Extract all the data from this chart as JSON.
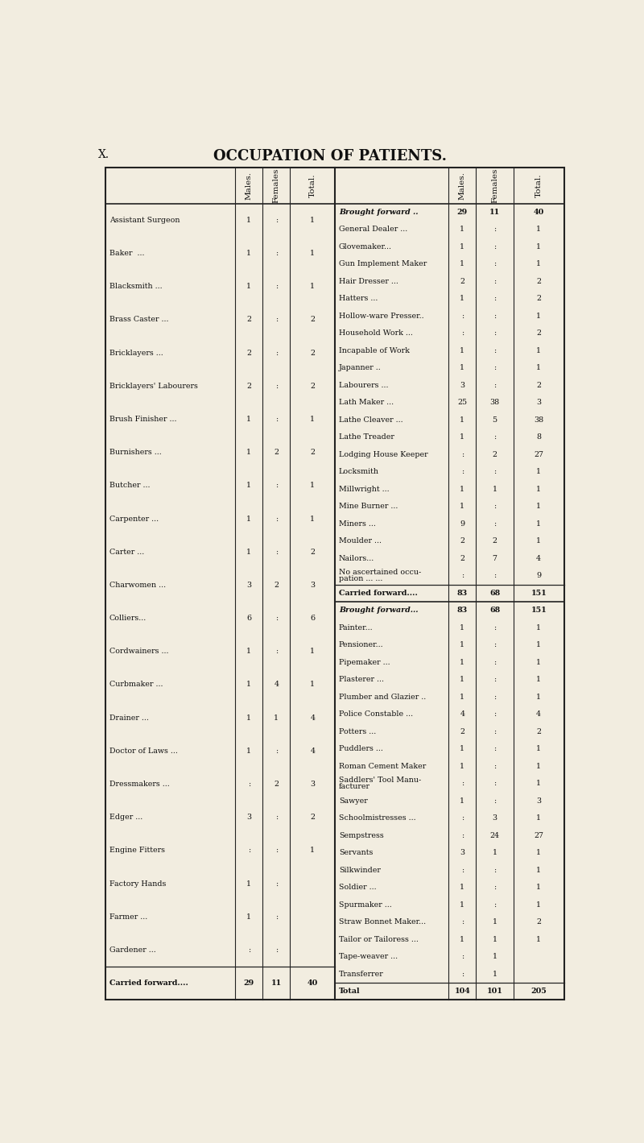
{
  "title": "OCCUPATION OF PATIENTS.",
  "background_color": "#f2ede0",
  "page_label": "X.",
  "left_table": {
    "rows": [
      {
        "occupation": "Assistant Surgeon",
        "males": "1",
        "females": ":",
        "total": "1"
      },
      {
        "occupation": "Baker  ...",
        "males": "1",
        "females": ":",
        "total": "1"
      },
      {
        "occupation": "Blacksmith ...",
        "males": "1",
        "females": ":",
        "total": "1"
      },
      {
        "occupation": "Brass Caster ...",
        "males": "2",
        "females": ":",
        "total": "2"
      },
      {
        "occupation": "Bricklayers ...",
        "males": "2",
        "females": ":",
        "total": "2"
      },
      {
        "occupation": "Bricklayers' Labourers",
        "males": "2",
        "females": ":",
        "total": "2"
      },
      {
        "occupation": "Brush Finisher ...",
        "males": "1",
        "females": ":",
        "total": "1"
      },
      {
        "occupation": "Burnishers ...",
        "males": "1",
        "females": "2",
        "total": "2"
      },
      {
        "occupation": "Butcher ...",
        "males": "1",
        "females": ":",
        "total": "1"
      },
      {
        "occupation": "Carpenter ...",
        "males": "1",
        "females": ":",
        "total": "1"
      },
      {
        "occupation": "Carter ...",
        "males": "1",
        "females": ":",
        "total": "2"
      },
      {
        "occupation": "Charwomen ...",
        "males": "3",
        "females": "2",
        "total": "3"
      },
      {
        "occupation": "Colliers...",
        "males": "6",
        "females": ":",
        "total": "6"
      },
      {
        "occupation": "Cordwainers ...",
        "males": "1",
        "females": ":",
        "total": "1"
      },
      {
        "occupation": "Curbmaker ...",
        "males": "1",
        "females": "4",
        "total": "1"
      },
      {
        "occupation": "Drainer ...",
        "males": "1",
        "females": "1",
        "total": "4"
      },
      {
        "occupation": "Doctor of Laws ...",
        "males": "1",
        "females": ":",
        "total": "4"
      },
      {
        "occupation": "Dressmakers ...",
        "males": ":",
        "females": "2",
        "total": "3"
      },
      {
        "occupation": "Edger ...",
        "males": "3",
        "females": ":",
        "total": "2"
      },
      {
        "occupation": "Engine Fitters",
        "males": ":",
        "females": ":",
        "total": "1"
      },
      {
        "occupation": "Factory Hands",
        "males": "1",
        "females": ":",
        "total": ""
      },
      {
        "occupation": "Farmer ...",
        "males": "1",
        "females": ":",
        "total": ""
      },
      {
        "occupation": "Gardener ...",
        "males": ":",
        "females": ":",
        "total": ""
      },
      {
        "occupation": "Carried forward....",
        "males": "29",
        "females": "11",
        "total": "40"
      }
    ]
  },
  "middle_table": {
    "rows": [
      {
        "occupation": "Brought forward ..",
        "males": "29",
        "females": "11",
        "total": "40"
      },
      {
        "occupation": "General Dealer ...",
        "males": "1",
        "females": ":",
        "total": "1"
      },
      {
        "occupation": "Glovemaker...",
        "males": "1",
        "females": ":",
        "total": "1"
      },
      {
        "occupation": "Gun Implement Maker",
        "males": "1",
        "females": ":",
        "total": "1"
      },
      {
        "occupation": "Hair Dresser ...",
        "males": "2",
        "females": ":",
        "total": "2"
      },
      {
        "occupation": "Hatters ...",
        "males": "1",
        "females": ":",
        "total": "2"
      },
      {
        "occupation": "Hollow-ware Presser..",
        "males": ":",
        "females": ":",
        "total": "1"
      },
      {
        "occupation": "Household Work ...",
        "males": ":",
        "females": ":",
        "total": "2"
      },
      {
        "occupation": "Incapable of Work",
        "males": "1",
        "females": ":",
        "total": "1"
      },
      {
        "occupation": "Japanner ..",
        "males": "1",
        "females": ":",
        "total": "1"
      },
      {
        "occupation": "Labourers ...",
        "males": "3",
        "females": ":",
        "total": "2"
      },
      {
        "occupation": "Lath Maker ...",
        "males": "25",
        "females": "38",
        "total": "3"
      },
      {
        "occupation": "Lathe Cleaver ...",
        "males": "1",
        "females": "5",
        "total": "38"
      },
      {
        "occupation": "Lathe Treader",
        "males": "1",
        "females": ":",
        "total": "8"
      },
      {
        "occupation": "Lodging House Keeper",
        "males": ":",
        "females": "2",
        "total": "27"
      },
      {
        "occupation": "Locksmith",
        "males": ":",
        "females": ":",
        "total": "1"
      },
      {
        "occupation": "Millwright ...",
        "males": "1",
        "females": "1",
        "total": "1"
      },
      {
        "occupation": "Mine Burner ...",
        "males": "1",
        "females": ":",
        "total": "1"
      },
      {
        "occupation": "Miners ...",
        "males": "9",
        "females": ":",
        "total": "1"
      },
      {
        "occupation": "Moulder ...",
        "males": "2",
        "females": "2",
        "total": "1"
      },
      {
        "occupation": "Nailors...",
        "males": "2",
        "females": "7",
        "total": "4"
      },
      {
        "occupation": "No ascertained occu-|  pation ... ...",
        "males": ":",
        "females": ":",
        "total": "9"
      },
      {
        "occupation": "Carried forward....",
        "males": "83",
        "females": "68",
        "total": "151"
      }
    ]
  },
  "right_table": {
    "rows": [
      {
        "occupation": "Brought forward...",
        "males": "83",
        "females": "68",
        "total": "151"
      },
      {
        "occupation": "Painter...",
        "males": "1",
        "females": ":",
        "total": "1"
      },
      {
        "occupation": "Pensioner...",
        "males": "1",
        "females": ":",
        "total": "1"
      },
      {
        "occupation": "Pipemaker ...",
        "males": "1",
        "females": ":",
        "total": "1"
      },
      {
        "occupation": "Plasterer ...",
        "males": "1",
        "females": ":",
        "total": "1"
      },
      {
        "occupation": "Plumber and Glazier ..",
        "males": "1",
        "females": ":",
        "total": "1"
      },
      {
        "occupation": "Police Constable ...",
        "males": "4",
        "females": ":",
        "total": "4"
      },
      {
        "occupation": "Potters ...",
        "males": "2",
        "females": ":",
        "total": "2"
      },
      {
        "occupation": "Puddlers ...",
        "males": "1",
        "females": ":",
        "total": "1"
      },
      {
        "occupation": "Roman Cement Maker",
        "males": "1",
        "females": ":",
        "total": "1"
      },
      {
        "occupation": "Saddlers' Tool Manu-|  facturer",
        "males": ":",
        "females": ":",
        "total": "1"
      },
      {
        "occupation": "Sawyer",
        "males": "1",
        "females": ":",
        "total": "3"
      },
      {
        "occupation": "Schoolmistresses ...",
        "males": ":",
        "females": "3",
        "total": "1"
      },
      {
        "occupation": "Sempstress",
        "males": ":",
        "females": "24",
        "total": "27"
      },
      {
        "occupation": "Servants",
        "males": "3",
        "females": "1",
        "total": "1"
      },
      {
        "occupation": "Silkwinder",
        "males": ":",
        "females": ":",
        "total": "1"
      },
      {
        "occupation": "Soldier ...",
        "males": "1",
        "females": ":",
        "total": "1"
      },
      {
        "occupation": "Spurmaker ...",
        "males": "1",
        "females": ":",
        "total": "1"
      },
      {
        "occupation": "Straw Bonnet Maker...",
        "males": ":",
        "females": "1",
        "total": "2"
      },
      {
        "occupation": "Tailor or Tailoress ...",
        "males": "1",
        "females": "1",
        "total": "1"
      },
      {
        "occupation": "Tape-weaver ...",
        "males": ":",
        "females": "1",
        "total": ""
      },
      {
        "occupation": "Transferrer",
        "males": ":",
        "females": "1",
        "total": ""
      },
      {
        "occupation": "Total",
        "males": "104",
        "females": "101",
        "total": "205"
      }
    ]
  }
}
